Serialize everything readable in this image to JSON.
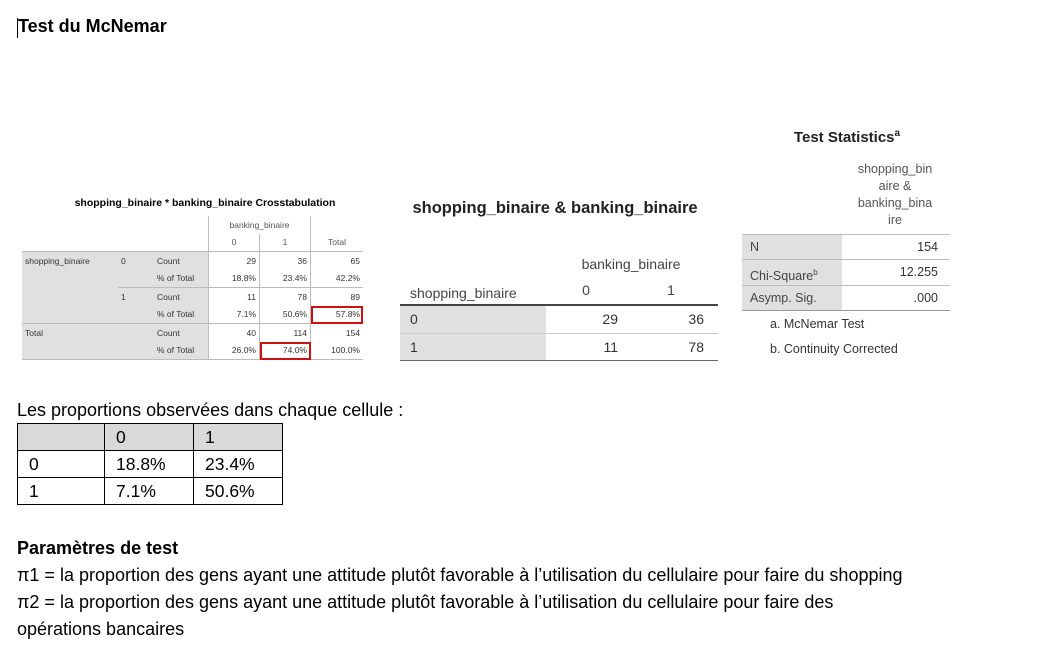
{
  "title": "Test du McNemar",
  "crosstab": {
    "title": "shopping_binaire * banking_binaire Crosstabulation",
    "col_var": "banking_binaire",
    "col_headers": [
      "0",
      "1",
      "Total"
    ],
    "row_var": "shopping_binaire",
    "row_labels": [
      "0",
      "1"
    ],
    "total_label": "Total",
    "stat_labels": [
      "Count",
      "% of Total"
    ],
    "rows": [
      {
        "count": [
          "29",
          "36",
          "65"
        ],
        "pct": [
          "18.8%",
          "23.4%",
          "42.2%"
        ]
      },
      {
        "count": [
          "11",
          "78",
          "89"
        ],
        "pct": [
          "7.1%",
          "50.6%",
          "57.8%"
        ]
      },
      {
        "count": [
          "40",
          "114",
          "154"
        ],
        "pct": [
          "26.0%",
          "74.0%",
          "100.0%"
        ]
      }
    ],
    "highlight_color": "#cc1111"
  },
  "pair_table": {
    "title": "shopping_binaire & banking_binaire",
    "col_var": "banking_binaire",
    "row_var": "shopping_binaire",
    "cols": [
      "0",
      "1"
    ],
    "rows": [
      {
        "label": "0",
        "values": [
          "29",
          "36"
        ]
      },
      {
        "label": "1",
        "values": [
          "11",
          "78"
        ]
      }
    ]
  },
  "test_stats": {
    "title": "Test Statistics",
    "title_sup": "a",
    "col_header": [
      "shopping_bin",
      "aire &",
      "banking_bina",
      "ire"
    ],
    "rows": [
      {
        "label": "N",
        "sup": "",
        "value": "154"
      },
      {
        "label": "Chi-Square",
        "sup": "b",
        "value": "12.255"
      },
      {
        "label": "Asymp. Sig.",
        "sup": "",
        "value": ".000"
      }
    ],
    "footnotes": [
      "a. McNemar Test",
      "b. Continuity Corrected"
    ]
  },
  "proportions": {
    "intro": "Les proportions observées dans chaque cellule :",
    "header": [
      "",
      "0",
      "1"
    ],
    "rows": [
      [
        "0",
        "18.8%",
        "23.4%"
      ],
      [
        "1",
        "7.1%",
        "50.6%"
      ]
    ]
  },
  "params": {
    "title": "Paramètres de test",
    "lines": [
      "π1 =  la proportion des gens ayant une attitude plutôt favorable à l’utilisation du cellulaire pour faire du shopping",
      "π2 = la proportion des gens ayant une attitude plutôt favorable à l’utilisation du cellulaire pour faire des",
      "opérations bancaires"
    ]
  }
}
